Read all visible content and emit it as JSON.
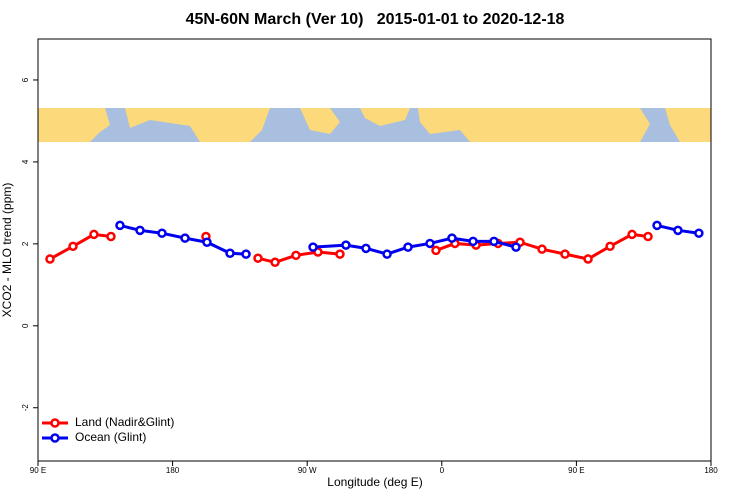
{
  "chart_data": {
    "type": "line",
    "title": "45N-60N March (Ver 10)   2015-01-01 to 2020-12-18",
    "x_label": "Longitude (deg E)",
    "y_label": "XCO2 - MLO trend (ppm)",
    "xlim": [
      90,
      540
    ],
    "ylim": [
      -3.3,
      7
    ],
    "xticks": [
      {
        "value": 90,
        "label": "90 E"
      },
      180,
      {
        "value": 270,
        "label": "90 W"
      },
      {
        "value": 360,
        "label": "0"
      },
      {
        "value": 450,
        "label": "90 E"
      },
      {
        "value": 540,
        "label": "180"
      }
    ],
    "yticks": [
      -2,
      0,
      2,
      4,
      6
    ],
    "legend": "bottom-left",
    "series": [
      {
        "name": "Land (Nadir&Glint)",
        "color": "#ff0000",
        "x": [
          98.0,
          113.4,
          127.4,
          138.8,
          null,
          202.3,
          null,
          237.1,
          248.5,
          262.5,
          277.2,
          291.9,
          null,
          356.1,
          368.8,
          382.9,
          397.6,
          412.3,
          427.0,
          442.4,
          457.8,
          472.5,
          487.2,
          497.9
        ],
        "values": [
          1.63,
          1.94,
          2.23,
          2.18,
          null,
          2.18,
          null,
          1.65,
          1.55,
          1.72,
          1.8,
          1.75,
          null,
          1.84,
          2.01,
          1.97,
          2.01,
          2.04,
          1.87,
          1.75,
          1.63,
          1.94,
          2.23,
          2.18
        ]
      },
      {
        "name": "Ocean (Glint)",
        "color": "#0000ee",
        "x": [
          144.8,
          158.2,
          172.9,
          188.3,
          203.0,
          218.4,
          229.1,
          null,
          273.9,
          295.9,
          309.3,
          323.4,
          337.4,
          352.1,
          366.8,
          380.9,
          394.9,
          409.6,
          null,
          503.9,
          517.9,
          531.9
        ],
        "values": [
          2.45,
          2.33,
          2.26,
          2.14,
          2.04,
          1.77,
          1.75,
          null,
          1.92,
          1.97,
          1.89,
          1.75,
          1.92,
          2.01,
          2.14,
          2.06,
          2.06,
          1.92,
          null,
          2.45,
          2.33,
          2.26
        ]
      }
    ]
  }
}
